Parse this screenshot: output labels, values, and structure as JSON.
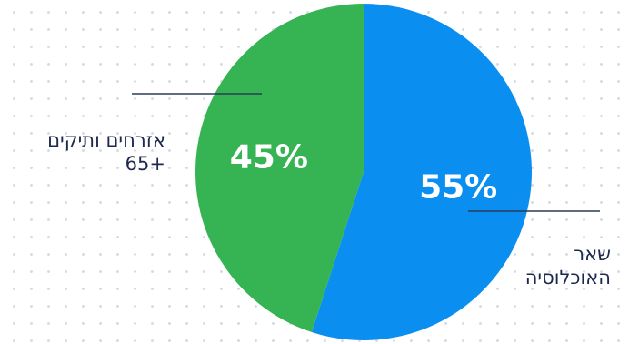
{
  "chart_data": {
    "type": "pie",
    "slices": [
      {
        "label": "שאר האוכלוסיה",
        "value": 55,
        "display": "55%",
        "color": "#0a8ff0"
      },
      {
        "label": "אזרחים ותיקים 65+",
        "value": 45,
        "display": "45%",
        "color": "#36b453"
      }
    ],
    "leader_line_color": "#2a3b5c",
    "legend": "callout labels"
  },
  "labels": {
    "left_line1": "אזרחים ותיקים",
    "left_line2": "65+",
    "right_line1": "שאר",
    "right_line2": "האוכלוסיה"
  }
}
